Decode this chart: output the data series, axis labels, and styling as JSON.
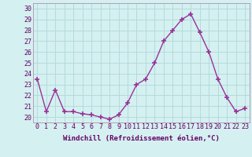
{
  "x": [
    0,
    1,
    2,
    3,
    4,
    5,
    6,
    7,
    8,
    9,
    10,
    11,
    12,
    13,
    14,
    15,
    16,
    17,
    18,
    19,
    20,
    21,
    22,
    23
  ],
  "y": [
    23.5,
    20.5,
    22.5,
    20.5,
    20.5,
    20.3,
    20.2,
    20.0,
    19.8,
    20.2,
    21.3,
    23.0,
    23.5,
    25.0,
    27.0,
    28.0,
    29.0,
    29.5,
    27.8,
    26.0,
    23.5,
    21.8,
    20.5,
    20.8
  ],
  "line_color": "#993399",
  "marker": "+",
  "marker_color": "#993399",
  "xlabel": "Windchill (Refroidissement éolien,°C)",
  "xlabel_fontsize": 6.5,
  "yticks": [
    20,
    21,
    22,
    23,
    24,
    25,
    26,
    27,
    28,
    29,
    30
  ],
  "xlim": [
    -0.5,
    23.5
  ],
  "ylim": [
    19.5,
    30.5
  ],
  "bg_color": "#d4f0f0",
  "grid_color": "#b0d8d8",
  "tick_fontsize": 6.0,
  "linewidth": 1.0,
  "marker_size": 4
}
